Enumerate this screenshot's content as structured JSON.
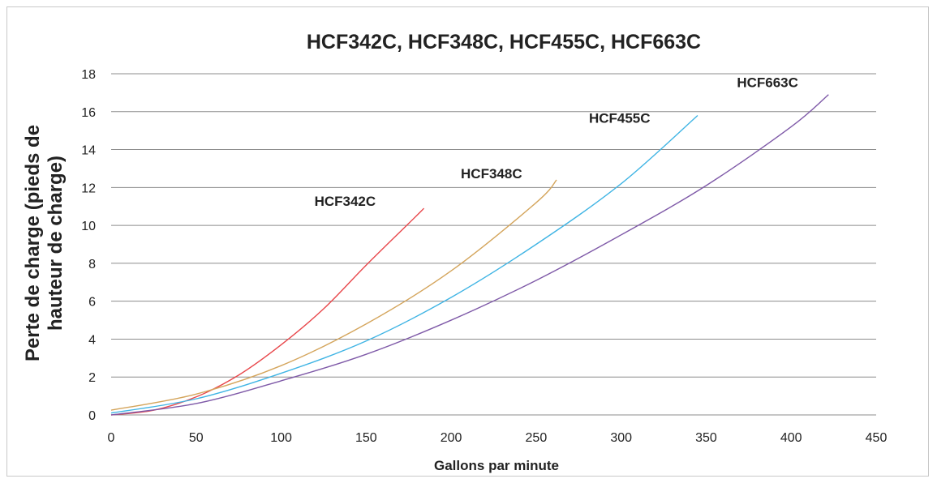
{
  "chart_data": {
    "type": "line",
    "title": "HCF342C, HCF348C, HCF455C, HCF663C",
    "xlabel": "Gallons par minute",
    "ylabel_lines": [
      "Perte de charge (pieds de",
      "hauteur de charge)"
    ],
    "xlim": [
      0,
      450
    ],
    "ylim": [
      0,
      18
    ],
    "xticks": [
      0,
      50,
      100,
      150,
      200,
      250,
      300,
      350,
      400,
      450
    ],
    "yticks": [
      0,
      2,
      4,
      6,
      8,
      10,
      12,
      14,
      16,
      18
    ],
    "grid": true,
    "series": [
      {
        "name": "HCF342C",
        "color": "#e8474b",
        "x": [
          0,
          25,
          50,
          75,
          100,
          125,
          150,
          175,
          184
        ],
        "y": [
          0,
          0.25,
          0.95,
          2.1,
          3.7,
          5.6,
          7.9,
          10.1,
          10.9
        ]
      },
      {
        "name": "HCF348C",
        "color": "#d4a55c",
        "x": [
          0,
          50,
          100,
          150,
          200,
          250,
          262
        ],
        "y": [
          0.25,
          1.1,
          2.6,
          4.8,
          7.6,
          11.2,
          12.4
        ]
      },
      {
        "name": "HCF455C",
        "color": "#3fb4e4",
        "x": [
          0,
          50,
          100,
          150,
          200,
          250,
          300,
          345
        ],
        "y": [
          0.1,
          0.85,
          2.2,
          3.9,
          6.2,
          9.0,
          12.2,
          15.8
        ]
      },
      {
        "name": "HCF663C",
        "color": "#7f5aa8",
        "x": [
          0,
          50,
          100,
          150,
          200,
          250,
          300,
          350,
          400,
          422
        ],
        "y": [
          0,
          0.6,
          1.8,
          3.2,
          5.0,
          7.1,
          9.5,
          12.1,
          15.2,
          16.9
        ]
      }
    ]
  }
}
